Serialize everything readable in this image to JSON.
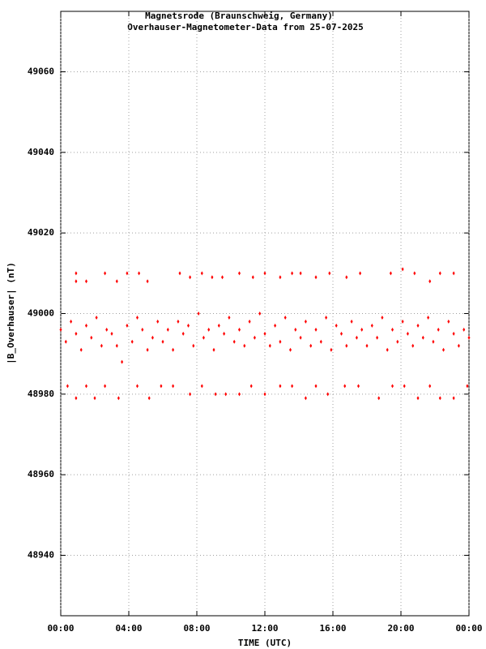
{
  "chart_data": {
    "type": "scatter",
    "title": "Magnetsrode (Braunschweig, Germany)",
    "subtitle": "Overhauser-Magnetometer-Data from 25-07-2025",
    "x_label": "TIME (UTC)",
    "y_label": "|B_Overhauser| (nT)",
    "color": "#ff0000",
    "grid": true,
    "xlim": [
      0,
      24
    ],
    "xticks": [
      {
        "value": 0,
        "label": "00:00"
      },
      {
        "value": 4,
        "label": "04:00"
      },
      {
        "value": 8,
        "label": "08:00"
      },
      {
        "value": 12,
        "label": "12:00"
      },
      {
        "value": 16,
        "label": "16:00"
      },
      {
        "value": 20,
        "label": "20:00"
      },
      {
        "value": 24,
        "label": "00:00"
      }
    ],
    "ylim": [
      48925,
      49075
    ],
    "yticks": [
      48940,
      48960,
      48980,
      49000,
      49020,
      49040,
      49060
    ],
    "x": [
      0.9,
      0.9,
      1.5,
      2.6,
      3.3,
      3.9,
      4.6,
      5.1,
      7.0,
      7.6,
      8.3,
      8.9,
      9.5,
      10.5,
      11.3,
      12.0,
      12.9,
      13.6,
      14.1,
      15.0,
      15.8,
      16.8,
      17.6,
      19.4,
      20.1,
      20.8,
      21.7,
      22.3,
      23.1,
      0.4,
      0.9,
      1.5,
      2.0,
      2.6,
      3.4,
      4.5,
      5.2,
      5.9,
      6.6,
      7.6,
      8.3,
      9.1,
      9.7,
      10.5,
      11.2,
      12.0,
      12.9,
      13.6,
      14.4,
      15.0,
      15.7,
      16.7,
      17.5,
      18.7,
      19.5,
      20.2,
      21.0,
      21.7,
      22.3,
      23.1,
      23.9,
      0.0,
      0.3,
      0.6,
      0.9,
      1.2,
      1.5,
      1.8,
      2.1,
      2.4,
      2.7,
      3.0,
      3.3,
      3.6,
      3.9,
      4.2,
      4.5,
      4.8,
      5.1,
      5.4,
      5.7,
      6.0,
      6.3,
      6.6,
      6.9,
      7.2,
      7.5,
      7.8,
      8.1,
      8.4,
      8.7,
      9.0,
      9.3,
      9.6,
      9.9,
      10.2,
      10.5,
      10.8,
      11.1,
      11.4,
      11.7,
      12.0,
      12.3,
      12.6,
      12.9,
      13.2,
      13.5,
      13.8,
      14.1,
      14.4,
      14.7,
      15.0,
      15.3,
      15.6,
      15.9,
      16.2,
      16.5,
      16.8,
      17.1,
      17.4,
      17.7,
      18.0,
      18.3,
      18.6,
      18.9,
      19.2,
      19.5,
      19.8,
      20.1,
      20.4,
      20.7,
      21.0,
      21.3,
      21.6,
      21.9,
      22.2,
      22.5,
      22.8,
      23.1,
      23.4,
      23.7,
      24.0
    ],
    "y": [
      49010,
      49008,
      49008,
      49010,
      49008,
      49010,
      49010,
      49008,
      49010,
      49009,
      49010,
      49009,
      49009,
      49010,
      49009,
      49010,
      49009,
      49010,
      49010,
      49009,
      49010,
      49009,
      49010,
      49010,
      49011,
      49010,
      49008,
      49010,
      49010,
      48982,
      48979,
      48982,
      48979,
      48982,
      48979,
      48982,
      48979,
      48982,
      48982,
      48980,
      48982,
      48980,
      48980,
      48980,
      48982,
      48980,
      48982,
      48982,
      48979,
      48982,
      48980,
      48982,
      48982,
      48979,
      48982,
      48982,
      48979,
      48982,
      48979,
      48979,
      48982,
      48996,
      48993,
      48998,
      48995,
      48991,
      48997,
      48994,
      48999,
      48992,
      48996,
      48995,
      48992,
      48988,
      48997,
      48993,
      48999,
      48996,
      48991,
      48994,
      48998,
      48993,
      48996,
      48991,
      48998,
      48995,
      48997,
      48992,
      49000,
      48994,
      48996,
      48991,
      48997,
      48995,
      48999,
      48993,
      48996,
      48992,
      48998,
      48994,
      49000,
      48995,
      48992,
      48997,
      48993,
      48999,
      48991,
      48996,
      48994,
      48998,
      48992,
      48996,
      48993,
      48999,
      48991,
      48997,
      48995,
      48992,
      48998,
      48994,
      48996,
      48992,
      48997,
      48994,
      48999,
      48991,
      48996,
      48993,
      48998,
      48995,
      48992,
      48997,
      48994,
      48999,
      48993,
      48996,
      48991,
      48998,
      48995,
      48992,
      48996,
      48994
    ]
  }
}
